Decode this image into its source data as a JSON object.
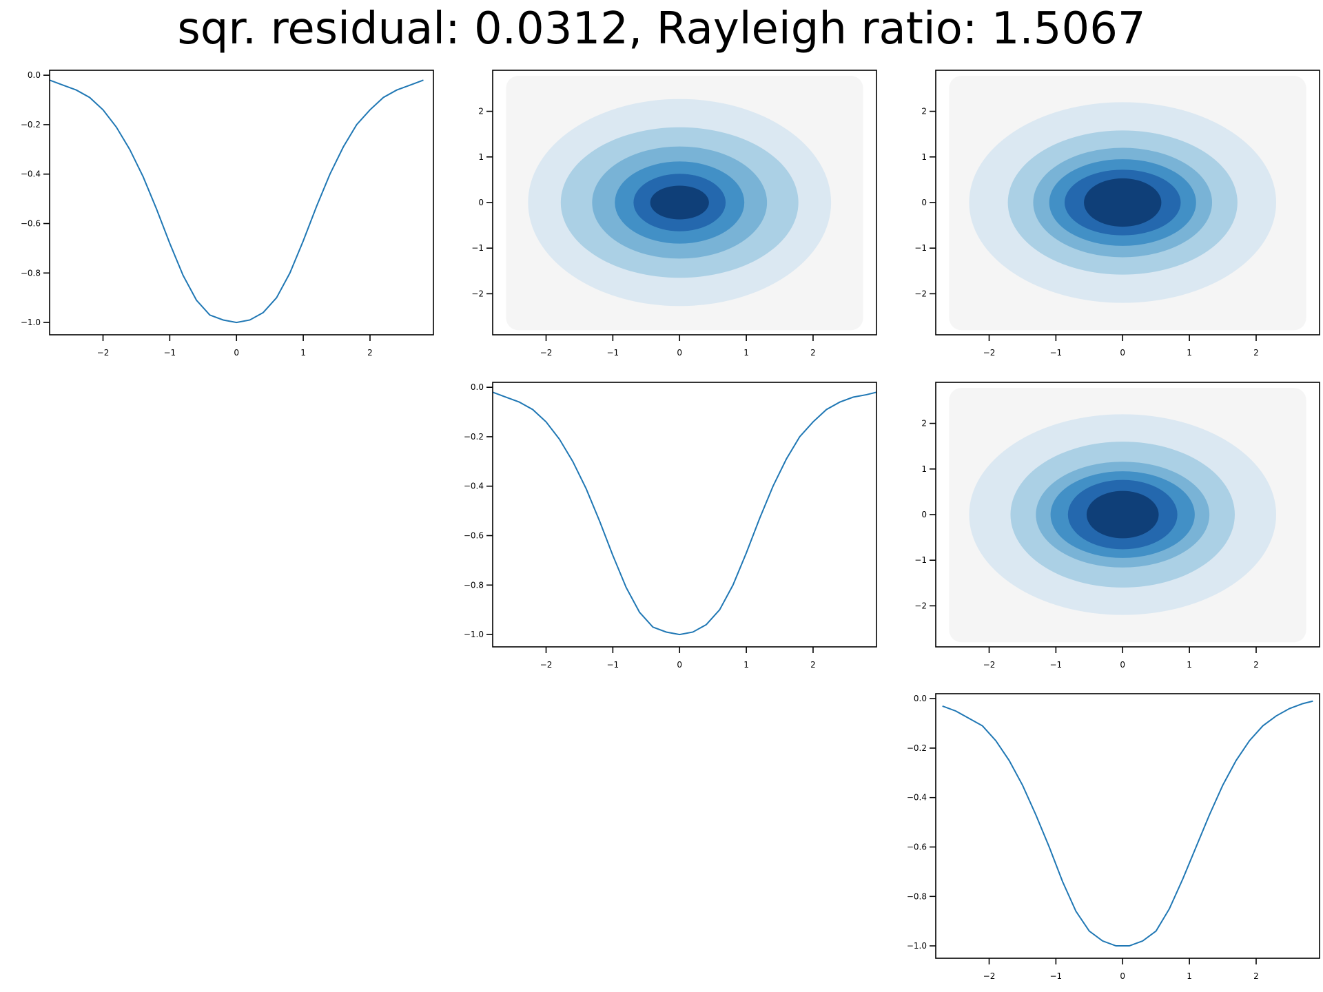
{
  "title": "sqr. residual: 0.0312, Rayleigh ratio: 1.5067",
  "colors": {
    "line": "#1f77b4",
    "contour_levels": [
      "#f5f5f5",
      "#dbe8f2",
      "#abd0e5",
      "#79b3d6",
      "#4290c6",
      "#2468ae",
      "#0f3f78"
    ]
  },
  "chart_data": [
    {
      "panel": "row1-col1",
      "type": "line",
      "xticks": [
        -2,
        -1,
        0,
        1,
        2
      ],
      "yticks": [
        0.0,
        -0.2,
        -0.4,
        -0.6,
        -0.8,
        -1.0
      ],
      "xtick_labels": [
        "−2",
        "−1",
        "0",
        "1",
        "2"
      ],
      "ytick_labels": [
        "0.0",
        "−0.2",
        "−0.4",
        "−0.6",
        "−0.8",
        "−1.0"
      ],
      "xlim": [
        -2.8,
        2.95
      ],
      "ylim": [
        -1.05,
        0.02
      ],
      "x": [
        -2.8,
        -2.6,
        -2.4,
        -2.2,
        -2.0,
        -1.8,
        -1.6,
        -1.4,
        -1.2,
        -1.0,
        -0.8,
        -0.6,
        -0.4,
        -0.2,
        0.0,
        0.2,
        0.4,
        0.6,
        0.8,
        1.0,
        1.2,
        1.4,
        1.6,
        1.8,
        2.0,
        2.2,
        2.4,
        2.6,
        2.8
      ],
      "y": [
        -0.02,
        -0.04,
        -0.06,
        -0.09,
        -0.14,
        -0.21,
        -0.3,
        -0.41,
        -0.54,
        -0.68,
        -0.81,
        -0.91,
        -0.97,
        -0.99,
        -1.0,
        -0.99,
        -0.96,
        -0.9,
        -0.8,
        -0.67,
        -0.53,
        -0.4,
        -0.29,
        -0.2,
        -0.14,
        -0.09,
        -0.06,
        -0.04,
        -0.02
      ]
    },
    {
      "panel": "row1-col2",
      "type": "heatmap",
      "xticks": [
        -2,
        -1,
        0,
        1,
        2
      ],
      "yticks": [
        2,
        1,
        0,
        -1,
        -2
      ],
      "xtick_labels": [
        "−2",
        "−1",
        "0",
        "1",
        "2"
      ],
      "ytick_labels": [
        "2",
        "1",
        "0",
        "−1",
        "−2"
      ],
      "xlim": [
        -2.8,
        2.95
      ],
      "ylim": [
        -2.9,
        2.9
      ],
      "center": [
        0.0,
        0.0
      ],
      "level_semi_axes": [
        [
          2.27,
          2.27
        ],
        [
          1.78,
          1.65
        ],
        [
          1.31,
          1.23
        ],
        [
          0.97,
          0.9
        ],
        [
          0.69,
          0.63
        ],
        [
          0.44,
          0.37
        ]
      ]
    },
    {
      "panel": "row1-col3",
      "type": "heatmap",
      "xticks": [
        -2,
        -1,
        0,
        1,
        2
      ],
      "yticks": [
        2,
        1,
        0,
        -1,
        -2
      ],
      "xtick_labels": [
        "−2",
        "−1",
        "0",
        "1",
        "2"
      ],
      "ytick_labels": [
        "2",
        "1",
        "0",
        "−1",
        "−2"
      ],
      "xlim": [
        -2.8,
        2.95
      ],
      "ylim": [
        -2.9,
        2.9
      ],
      "center": [
        0.0,
        0.0
      ],
      "level_semi_axes": [
        [
          2.3,
          2.2
        ],
        [
          1.72,
          1.58
        ],
        [
          1.34,
          1.2
        ],
        [
          1.1,
          0.95
        ],
        [
          0.87,
          0.72
        ],
        [
          0.58,
          0.53
        ]
      ]
    },
    {
      "panel": "row2-col2",
      "type": "line",
      "xticks": [
        -2,
        -1,
        0,
        1,
        2
      ],
      "yticks": [
        0.0,
        -0.2,
        -0.4,
        -0.6,
        -0.8,
        -1.0
      ],
      "xtick_labels": [
        "−2",
        "−1",
        "0",
        "1",
        "2"
      ],
      "ytick_labels": [
        "0.0",
        "−0.2",
        "−0.4",
        "−0.6",
        "−0.8",
        "−1.0"
      ],
      "xlim": [
        -2.8,
        2.95
      ],
      "ylim": [
        -1.05,
        0.02
      ],
      "x": [
        -2.8,
        -2.6,
        -2.4,
        -2.2,
        -2.0,
        -1.8,
        -1.6,
        -1.4,
        -1.2,
        -1.0,
        -0.8,
        -0.6,
        -0.4,
        -0.2,
        0.0,
        0.2,
        0.4,
        0.6,
        0.8,
        1.0,
        1.2,
        1.4,
        1.6,
        1.8,
        2.0,
        2.2,
        2.4,
        2.6,
        2.8,
        2.95
      ],
      "y": [
        -0.02,
        -0.04,
        -0.06,
        -0.09,
        -0.14,
        -0.21,
        -0.3,
        -0.41,
        -0.54,
        -0.68,
        -0.81,
        -0.91,
        -0.97,
        -0.99,
        -1.0,
        -0.99,
        -0.96,
        -0.9,
        -0.8,
        -0.67,
        -0.53,
        -0.4,
        -0.29,
        -0.2,
        -0.14,
        -0.09,
        -0.06,
        -0.04,
        -0.03,
        -0.02
      ]
    },
    {
      "panel": "row2-col3",
      "type": "heatmap",
      "xticks": [
        -2,
        -1,
        0,
        1,
        2
      ],
      "yticks": [
        2,
        1,
        0,
        -1,
        -2
      ],
      "xtick_labels": [
        "−2",
        "−1",
        "0",
        "1",
        "2"
      ],
      "ytick_labels": [
        "2",
        "1",
        "0",
        "−1",
        "−2"
      ],
      "xlim": [
        -2.8,
        2.95
      ],
      "ylim": [
        -2.9,
        2.9
      ],
      "center": [
        0.0,
        0.0
      ],
      "level_semi_axes": [
        [
          2.3,
          2.2
        ],
        [
          1.68,
          1.6
        ],
        [
          1.3,
          1.16
        ],
        [
          1.08,
          0.95
        ],
        [
          0.82,
          0.76
        ],
        [
          0.54,
          0.52
        ]
      ]
    },
    {
      "panel": "row3-col3",
      "type": "line",
      "xticks": [
        -2,
        -1,
        0,
        1,
        2
      ],
      "yticks": [
        0.0,
        -0.2,
        -0.4,
        -0.6,
        -0.8,
        -1.0
      ],
      "xtick_labels": [
        "−2",
        "−1",
        "0",
        "1",
        "2"
      ],
      "ytick_labels": [
        "0.0",
        "−0.2",
        "−0.4",
        "−0.6",
        "−0.8",
        "−1.0"
      ],
      "xlim": [
        -2.8,
        2.95
      ],
      "ylim": [
        -1.05,
        0.02
      ],
      "x": [
        -2.7,
        -2.5,
        -2.3,
        -2.1,
        -1.9,
        -1.7,
        -1.5,
        -1.3,
        -1.1,
        -0.9,
        -0.7,
        -0.5,
        -0.3,
        -0.1,
        0.0,
        0.1,
        0.3,
        0.5,
        0.7,
        0.9,
        1.1,
        1.3,
        1.5,
        1.7,
        1.9,
        2.1,
        2.3,
        2.5,
        2.7,
        2.85
      ],
      "y": [
        -0.03,
        -0.05,
        -0.08,
        -0.11,
        -0.17,
        -0.25,
        -0.35,
        -0.47,
        -0.6,
        -0.74,
        -0.86,
        -0.94,
        -0.98,
        -1.0,
        -1.0,
        -1.0,
        -0.98,
        -0.94,
        -0.85,
        -0.73,
        -0.6,
        -0.47,
        -0.35,
        -0.25,
        -0.17,
        -0.11,
        -0.07,
        -0.04,
        -0.02,
        -0.01
      ]
    }
  ]
}
